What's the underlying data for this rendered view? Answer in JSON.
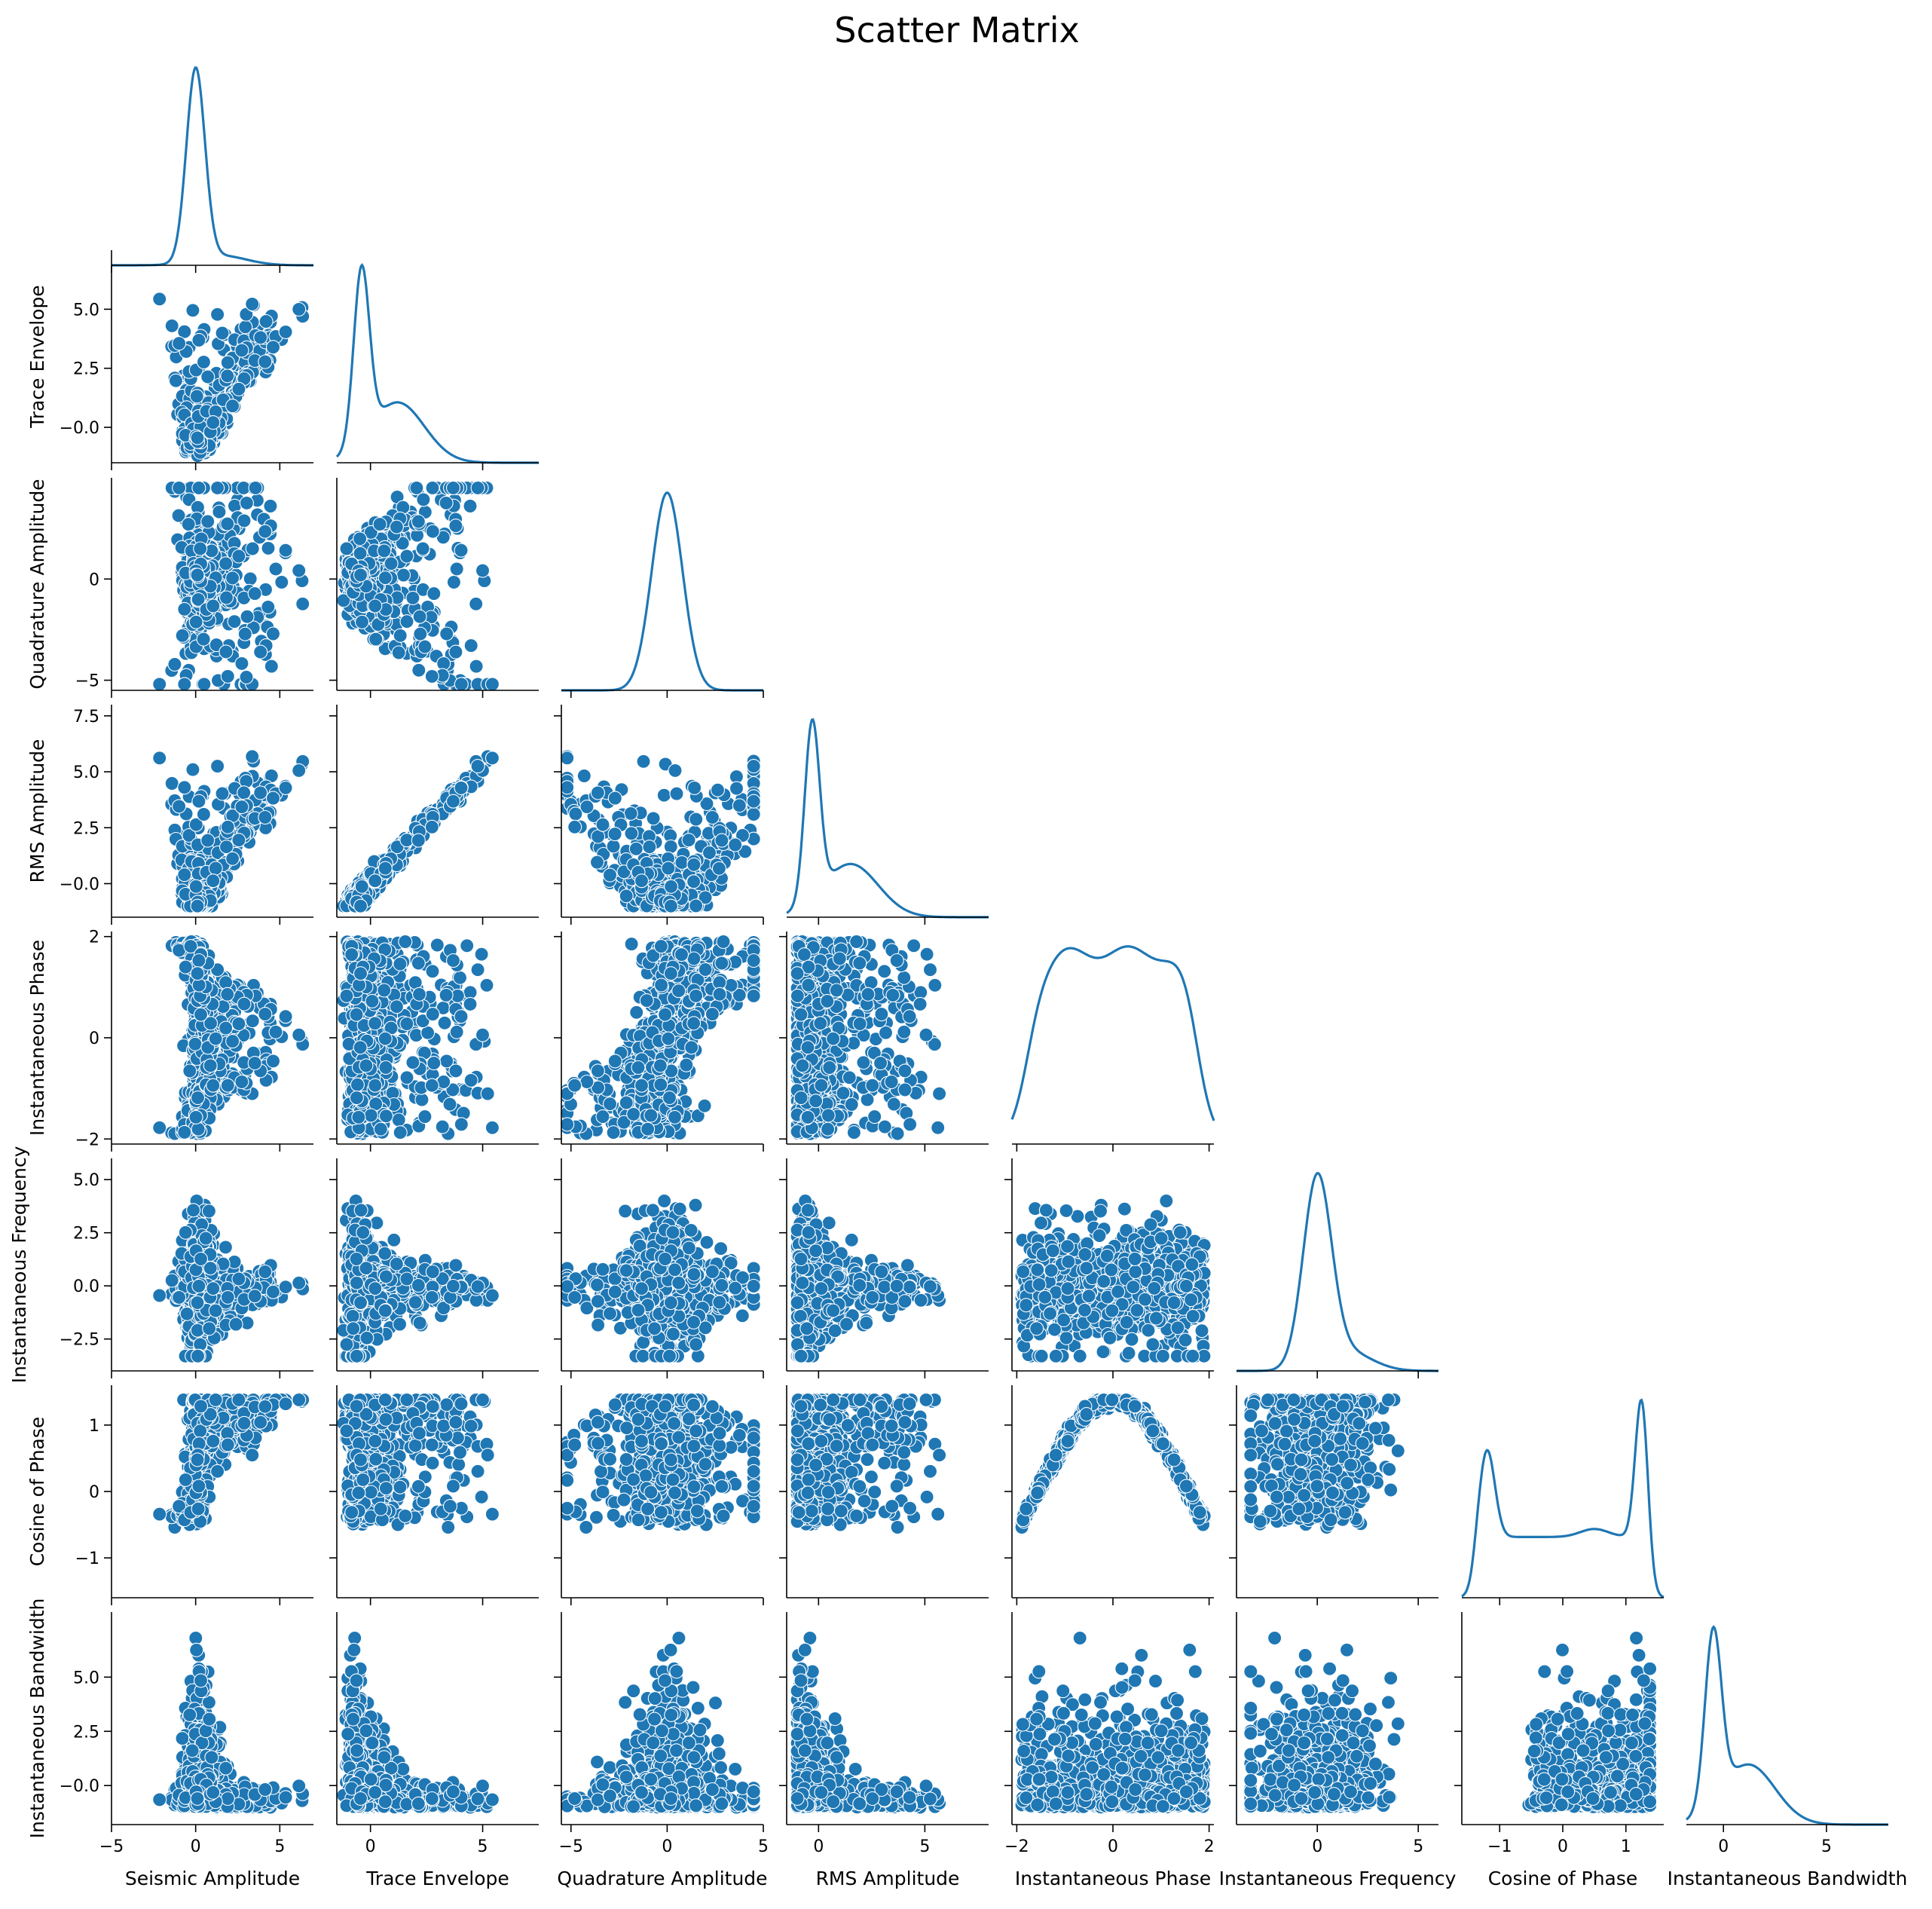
{
  "chart_data": {
    "type": "scatter",
    "title": "Scatter Matrix",
    "variables": [
      {
        "name": "Seismic Amplitude",
        "range": [
          -5,
          7
        ],
        "ticks": [
          -5,
          0,
          5
        ],
        "tick_labels": [
          "−5",
          "0",
          "5"
        ]
      },
      {
        "name": "Trace Envelope",
        "range": [
          -1.5,
          7.5
        ],
        "ticks": [
          -0.0,
          2.5,
          5.0
        ],
        "tick_labels": [
          "0",
          "5"
        ],
        "ytick_labels": [
          "−0.0",
          "2.5",
          "5.0"
        ],
        "xticks": [
          0,
          5
        ]
      },
      {
        "name": "Quadrature Amplitude",
        "range": [
          -5.5,
          5
        ],
        "ticks": [
          -5,
          0
        ],
        "tick_labels": [
          "−5",
          "0"
        ],
        "xticks": [
          -5,
          0,
          5
        ],
        "xtick_labels": [
          "−5",
          "0",
          "5"
        ]
      },
      {
        "name": "RMS Amplitude",
        "range": [
          -1.5,
          8
        ],
        "ticks": [
          -0.0,
          2.5,
          5.0,
          7.5
        ],
        "tick_labels": [
          "−0.0",
          "2.5",
          "5.0",
          "7.5"
        ],
        "xticks": [
          0,
          5
        ],
        "xtick_labels": [
          "0",
          "5"
        ]
      },
      {
        "name": "Instantaneous Phase",
        "range": [
          -2.1,
          2.1
        ],
        "ticks": [
          -2,
          0,
          2
        ],
        "tick_labels": [
          "−2",
          "0",
          "2"
        ]
      },
      {
        "name": "Instantaneous Frequency",
        "range": [
          -4,
          6
        ],
        "ticks": [
          -2.5,
          0.0,
          2.5,
          5.0
        ],
        "tick_labels": [
          "−2.5",
          "0.0",
          "2.5",
          "5.0"
        ],
        "xticks": [
          0,
          5
        ],
        "xtick_labels": [
          "0",
          "5"
        ]
      },
      {
        "name": "Cosine of Phase",
        "range": [
          -1.6,
          1.6
        ],
        "ticks": [
          -1,
          0,
          1
        ],
        "tick_labels": [
          "−1",
          "0",
          "1"
        ]
      },
      {
        "name": "Instantaneous Bandwidth",
        "range": [
          -1.8,
          8
        ],
        "ticks": [
          -0.0,
          2.5,
          5.0
        ],
        "tick_labels": [
          "−0.0",
          "2.5",
          "5.0"
        ],
        "xticks": [
          0,
          5
        ],
        "xtick_labels": [
          "0",
          "5"
        ]
      }
    ],
    "layout": "lower-triangle pair plot; diagonal = kernel density curves, off-diagonal = scatter plots",
    "series_color": "#1f77b4",
    "point_edge_color": "#ffffff",
    "grid": false,
    "legend": "none"
  }
}
